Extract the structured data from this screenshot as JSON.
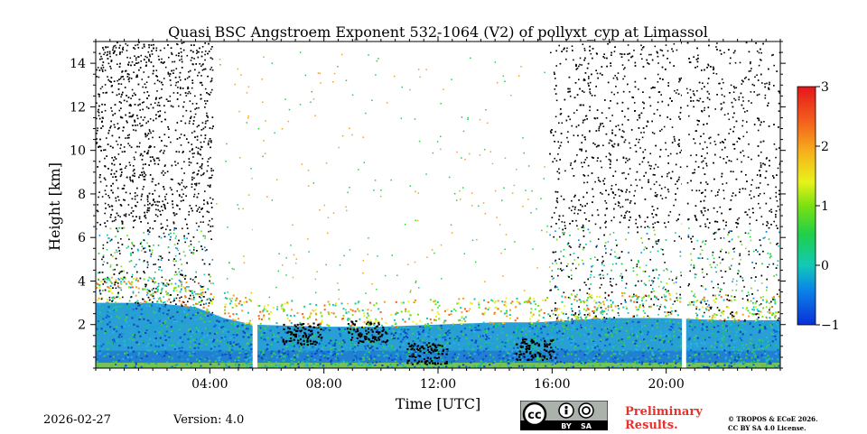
{
  "chart_data": {
    "type": "heatmap",
    "title": "Quasi BSC Angstroem Exponent 532-1064 (V2) of pollyxt_cyp at Limassol",
    "xlabel": "Time [UTC]",
    "ylabel": "Height [km]",
    "xlim_hours": [
      0,
      24
    ],
    "ylim_km": [
      0,
      15
    ],
    "x_ticks": [
      {
        "hour": 4,
        "label": "04:00"
      },
      {
        "hour": 8,
        "label": "08:00"
      },
      {
        "hour": 12,
        "label": "12:00"
      },
      {
        "hour": 16,
        "label": "16:00"
      },
      {
        "hour": 20,
        "label": "20:00"
      }
    ],
    "y_ticks": [
      {
        "km": 2,
        "label": "2"
      },
      {
        "km": 4,
        "label": "4"
      },
      {
        "km": 6,
        "label": "6"
      },
      {
        "km": 8,
        "label": "8"
      },
      {
        "km": 10,
        "label": "10"
      },
      {
        "km": 12,
        "label": "12"
      },
      {
        "km": 14,
        "label": "14"
      }
    ],
    "colorbar": {
      "range": [
        -1,
        3
      ],
      "colormap": "jet",
      "ticks": [
        {
          "value": 3,
          "label": "3"
        },
        {
          "value": 2,
          "label": "2"
        },
        {
          "value": 1,
          "label": "1"
        },
        {
          "value": 0,
          "label": "0"
        },
        {
          "value": -1,
          "label": "−1"
        }
      ]
    },
    "boundary_layer_top_km": [
      [
        0,
        3.0
      ],
      [
        2,
        3.0
      ],
      [
        3.5,
        2.8
      ],
      [
        4.5,
        2.3
      ],
      [
        5.5,
        2.0
      ],
      [
        8,
        1.9
      ],
      [
        10,
        1.9
      ],
      [
        12,
        2.0
      ],
      [
        14,
        2.1
      ],
      [
        15.5,
        2.1
      ],
      [
        16.5,
        2.2
      ],
      [
        18,
        2.3
      ],
      [
        20,
        2.3
      ],
      [
        22,
        2.2
      ],
      [
        24,
        2.2
      ]
    ],
    "no_data_gaps_hours": [
      [
        5.5,
        5.67
      ],
      [
        20.55,
        20.7
      ]
    ],
    "noise_region_hours": [
      [
        0,
        4.1
      ],
      [
        15.9,
        24
      ]
    ]
  },
  "footer": {
    "date": "2026-02-27",
    "version": "Version: 4.0",
    "preliminary_line1": "Preliminary",
    "preliminary_line2": "Results.",
    "license_line1": "© TROPOS & ECoE 2026.",
    "license_line2": "CC BY SA 4.0 License.",
    "cc_label_by": "BY",
    "cc_label_sa": "SA"
  }
}
